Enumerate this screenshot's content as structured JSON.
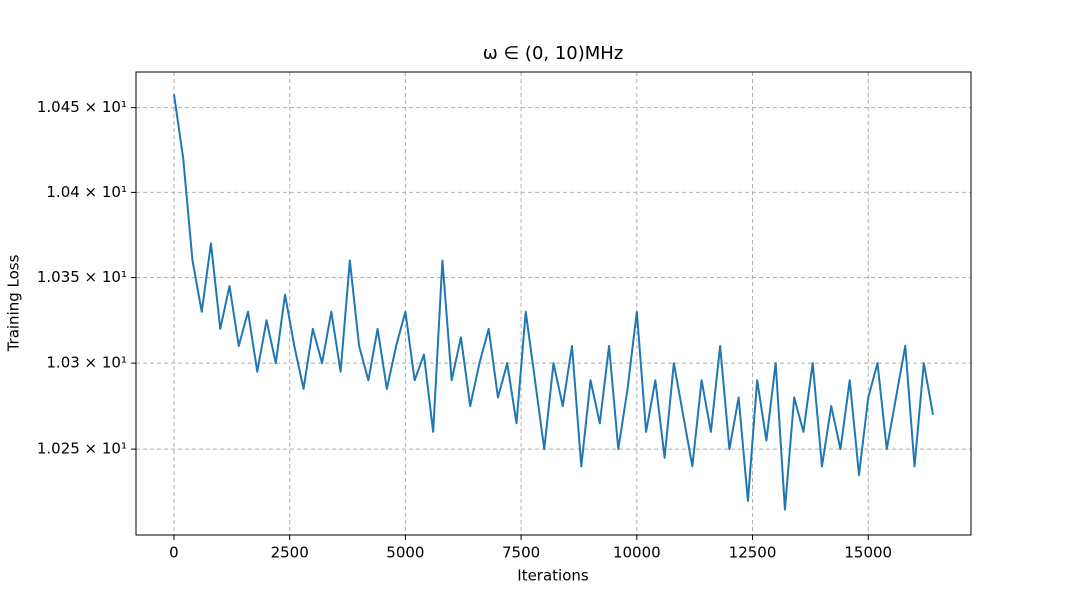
{
  "chart_data": {
    "type": "line",
    "title": "ω ∈ (0, 10)MHz",
    "x_label": "Iterations",
    "y_label": "Training Loss",
    "color": "#1f77b4",
    "log_y": true,
    "grid": true,
    "x": [
      0,
      200,
      400,
      600,
      800,
      1000,
      1200,
      1400,
      1600,
      1800,
      2000,
      2200,
      2400,
      2600,
      2800,
      3000,
      3200,
      3400,
      3600,
      3800,
      4000,
      4200,
      4400,
      4600,
      4800,
      5000,
      5200,
      5400,
      5600,
      5800,
      6000,
      6200,
      6400,
      6600,
      6800,
      7000,
      7200,
      7400,
      7600,
      7800,
      8000,
      8200,
      8400,
      8600,
      8800,
      9000,
      9200,
      9400,
      9600,
      9800,
      10000,
      10200,
      10400,
      10600,
      10800,
      11000,
      11200,
      11400,
      11600,
      11800,
      12000,
      12200,
      12400,
      12600,
      12800,
      13000,
      13200,
      13400,
      13600,
      13800,
      14000,
      14200,
      14400,
      14600,
      14800,
      15000,
      15200,
      15400,
      15600,
      15800,
      16000,
      16200,
      16400
    ],
    "values": [
      10.458,
      10.42,
      10.36,
      10.33,
      10.37,
      10.32,
      10.345,
      10.31,
      10.33,
      10.295,
      10.325,
      10.3,
      10.34,
      10.31,
      10.285,
      10.32,
      10.3,
      10.33,
      10.295,
      10.36,
      10.31,
      10.29,
      10.32,
      10.285,
      10.31,
      10.33,
      10.29,
      10.305,
      10.26,
      10.36,
      10.29,
      10.315,
      10.275,
      10.3,
      10.32,
      10.28,
      10.3,
      10.265,
      10.33,
      10.29,
      10.25,
      10.3,
      10.275,
      10.31,
      10.24,
      10.29,
      10.265,
      10.31,
      10.25,
      10.285,
      10.33,
      10.26,
      10.29,
      10.245,
      10.3,
      10.27,
      10.24,
      10.29,
      10.26,
      10.31,
      10.25,
      10.28,
      10.22,
      10.29,
      10.255,
      10.3,
      10.215,
      10.28,
      10.26,
      10.3,
      10.24,
      10.275,
      10.25,
      10.29,
      10.235,
      10.28,
      10.3,
      10.25,
      10.28,
      10.31,
      10.24,
      10.3,
      10.27
    ],
    "xlim": [
      -820,
      17220
    ],
    "ylim": [
      10.2003,
      10.4711
    ],
    "xticks": [
      0,
      2500,
      5000,
      7500,
      10000,
      12500,
      15000
    ],
    "yticks": [
      {
        "value": 10.25,
        "label": "1.025 × 10¹"
      },
      {
        "value": 10.3,
        "label": "1.03 × 10¹"
      },
      {
        "value": 10.35,
        "label": "1.035 × 10¹"
      },
      {
        "value": 10.4,
        "label": "1.04 × 10¹"
      },
      {
        "value": 10.45,
        "label": "1.045 × 10¹"
      }
    ]
  }
}
